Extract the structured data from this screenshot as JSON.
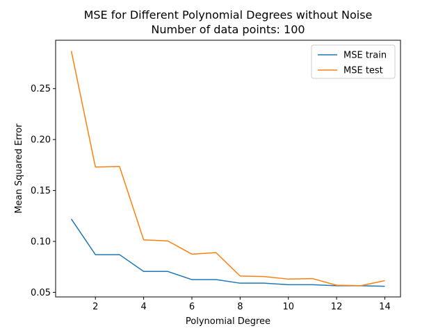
{
  "chart_data": {
    "type": "line",
    "title": "MSE for Different Polynomial Degrees without Noise",
    "subtitle": "Number of data points: 100",
    "xlabel": "Polynomial Degree",
    "ylabel": "Mean Squared Error",
    "xlim": [
      0.35,
      14.65
    ],
    "ylim": [
      0.0455,
      0.2975
    ],
    "x_ticks": [
      2,
      4,
      6,
      8,
      10,
      12,
      14
    ],
    "x_tick_labels": [
      "2",
      "4",
      "6",
      "8",
      "10",
      "12",
      "14"
    ],
    "y_ticks": [
      0.05,
      0.1,
      0.15,
      0.2,
      0.25
    ],
    "y_tick_labels": [
      "0.05",
      "0.10",
      "0.15",
      "0.20",
      "0.25"
    ],
    "grid": false,
    "legend_position": "top-right",
    "x": [
      1,
      2,
      3,
      4,
      5,
      6,
      7,
      8,
      9,
      10,
      11,
      12,
      13,
      14
    ],
    "series": [
      {
        "name": "MSE train",
        "color": "#1f77b4",
        "values": [
          0.122,
          0.087,
          0.087,
          0.0705,
          0.0705,
          0.0625,
          0.0625,
          0.059,
          0.059,
          0.0575,
          0.0575,
          0.0565,
          0.0565,
          0.056
        ]
      },
      {
        "name": "MSE test",
        "color": "#ff7f0e",
        "values": [
          0.287,
          0.173,
          0.1735,
          0.1015,
          0.1005,
          0.0875,
          0.089,
          0.066,
          0.0655,
          0.063,
          0.0635,
          0.057,
          0.0565,
          0.0615
        ]
      }
    ]
  }
}
